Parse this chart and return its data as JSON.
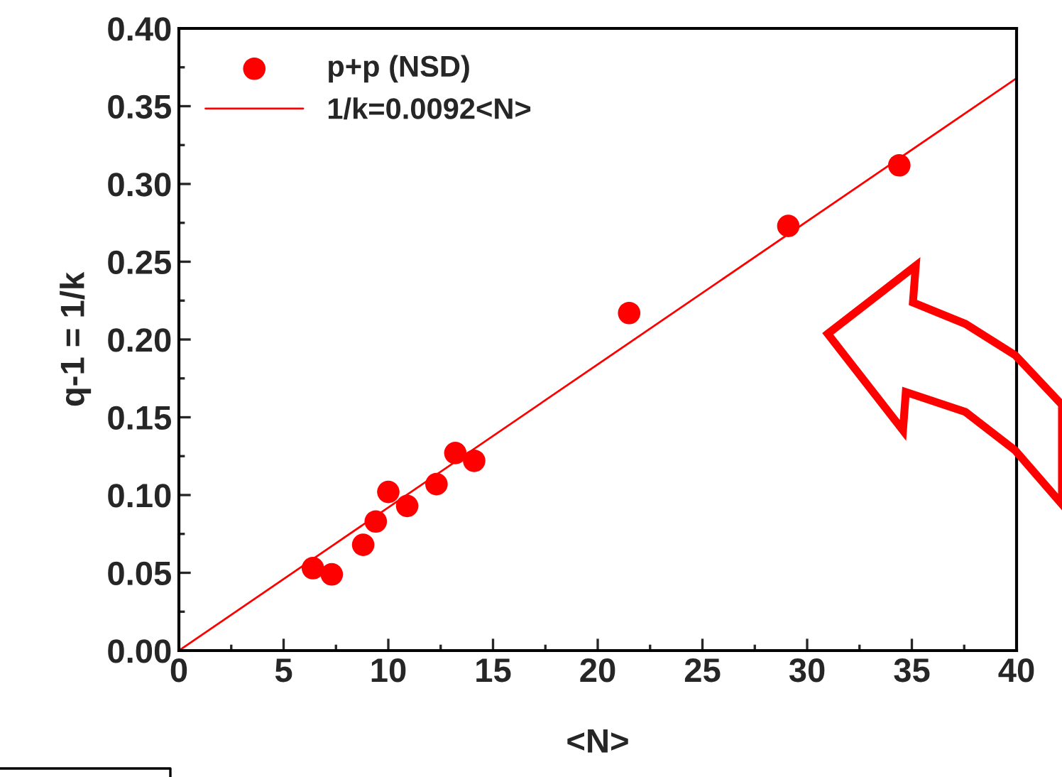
{
  "chart_data": {
    "type": "scatter",
    "xlabel": "<N>",
    "ylabel": "q-1 = 1/k",
    "xlim": [
      0,
      40
    ],
    "ylim": [
      0,
      0.4
    ],
    "xticks": [
      0,
      5,
      10,
      15,
      20,
      25,
      30,
      35,
      40
    ],
    "yticks": [
      {
        "value": 0,
        "label": "0.00"
      },
      {
        "value": 0.05,
        "label": "0.05"
      },
      {
        "value": 0.1,
        "label": "0.10"
      },
      {
        "value": 0.15,
        "label": "0.15"
      },
      {
        "value": 0.2,
        "label": "0.20"
      },
      {
        "value": 0.25,
        "label": "0.25"
      },
      {
        "value": 0.3,
        "label": "0.30"
      },
      {
        "value": 0.35,
        "label": "0.35"
      },
      {
        "value": 0.4,
        "label": "0.40"
      }
    ],
    "grid": false,
    "legend": "top left",
    "series": [
      {
        "name": "p+p (NSD)",
        "marker": "circle",
        "color": "#ff0000",
        "x": [
          6.4,
          7.3,
          8.8,
          9.4,
          10.0,
          10.9,
          12.3,
          13.2,
          14.1,
          21.5,
          29.1,
          34.4
        ],
        "values": [
          0.053,
          0.049,
          0.068,
          0.083,
          0.102,
          0.093,
          0.107,
          0.127,
          0.122,
          0.217,
          0.273,
          0.312
        ]
      },
      {
        "name": "1/k=0.0092<N>",
        "type": "line",
        "line_style": "solid",
        "color": "#ff0000",
        "x": [
          0,
          40
        ],
        "values": [
          0,
          0.368
        ]
      }
    ]
  }
}
